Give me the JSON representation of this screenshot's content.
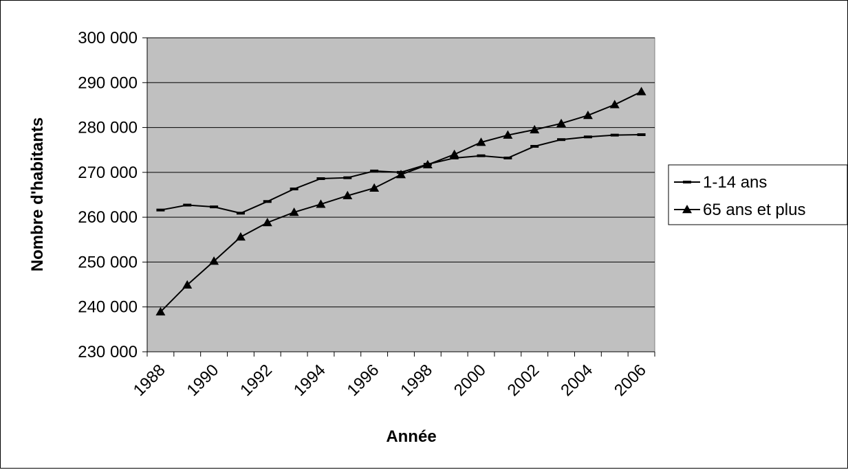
{
  "chart_data": {
    "type": "line",
    "x_label": "Année",
    "y_label": "Nombre d'habitants",
    "categories": [
      "1988",
      null,
      "1990",
      null,
      "1992",
      null,
      "1994",
      null,
      "1996",
      null,
      "1998",
      null,
      "2000",
      null,
      "2002",
      null,
      "2004",
      null,
      "2006"
    ],
    "series": [
      {
        "name": "1-14 ans",
        "color": "#000000",
        "marker": "dash",
        "values": [
          261600,
          262700,
          262300,
          260900,
          263500,
          266300,
          268600,
          268800,
          270300,
          270000,
          271800,
          273200,
          273700,
          273200,
          275800,
          277300,
          277900,
          278300,
          278400
        ]
      },
      {
        "name": "65 ans et plus",
        "color": "#000000",
        "marker": "triangle",
        "values": [
          238900,
          244900,
          250200,
          255600,
          258800,
          261100,
          262900,
          264800,
          266500,
          269500,
          271700,
          274000,
          276700,
          278300,
          279500,
          280900,
          282700,
          285100,
          288000
        ]
      }
    ],
    "ylim": [
      230000,
      300000
    ],
    "yticks": [
      {
        "value": 230000,
        "label": "230 000"
      },
      {
        "value": 240000,
        "label": "240 000"
      },
      {
        "value": 250000,
        "label": "250 000"
      },
      {
        "value": 260000,
        "label": "260 000"
      },
      {
        "value": 270000,
        "label": "270 000"
      },
      {
        "value": 280000,
        "label": "280 000"
      },
      {
        "value": 290000,
        "label": "290 000"
      },
      {
        "value": 300000,
        "label": "300 000"
      }
    ],
    "grid": true,
    "plot_background": "#c0c0c0",
    "legend": "right"
  }
}
